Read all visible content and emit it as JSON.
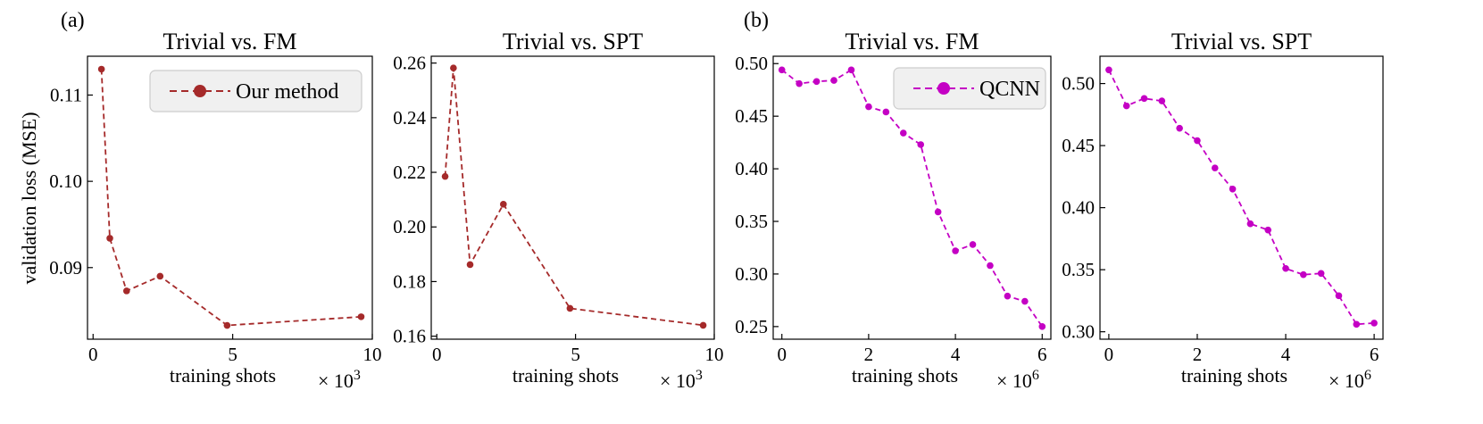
{
  "panel_labels": [
    "(a)",
    "(b)"
  ],
  "ylabel": "validation loss (MSE)",
  "chart_data": [
    {
      "type": "line",
      "title": "Trivial vs. FM",
      "xlabel": "training shots",
      "x_multiplier": "3",
      "color": "#a52a2a",
      "xlim": [
        -0.2,
        10.0
      ],
      "ylim": [
        0.0817,
        0.1145
      ],
      "xticks": [
        0,
        5,
        10
      ],
      "xtick_labels": [
        "0",
        "5",
        "10"
      ],
      "yticks": [
        0.09,
        0.1,
        0.11
      ],
      "ytick_labels": [
        "0.09",
        "0.10",
        "0.11"
      ],
      "legend": "Our method",
      "series": [
        {
          "name": "Our method",
          "x": [
            0.3,
            0.6,
            1.2,
            2.4,
            4.8,
            9.6
          ],
          "y": [
            0.113,
            0.0934,
            0.0873,
            0.089,
            0.0833,
            0.0843
          ]
        }
      ]
    },
    {
      "type": "line",
      "title": "Trivial vs. SPT",
      "xlabel": "training shots",
      "x_multiplier": "3",
      "color": "#a52a2a",
      "xlim": [
        -0.2,
        10.0
      ],
      "ylim": [
        0.1589,
        0.2625
      ],
      "xticks": [
        0,
        5,
        10
      ],
      "xtick_labels": [
        "0",
        "5",
        "10"
      ],
      "yticks": [
        0.16,
        0.18,
        0.2,
        0.22,
        0.24,
        0.26
      ],
      "ytick_labels": [
        "0.16",
        "0.18",
        "0.20",
        "0.22",
        "0.24",
        "0.26"
      ],
      "series": [
        {
          "name": "Our method",
          "x": [
            0.3,
            0.6,
            1.2,
            2.4,
            4.8,
            9.6
          ],
          "y": [
            0.2185,
            0.2582,
            0.1862,
            0.2083,
            0.1702,
            0.164
          ]
        }
      ]
    },
    {
      "type": "line",
      "title": "Trivial vs. FM",
      "xlabel": "training shots",
      "x_multiplier": "6",
      "color": "#c400c4",
      "xlim": [
        -0.2,
        6.2
      ],
      "ylim": [
        0.238,
        0.507
      ],
      "xticks": [
        0,
        2,
        4,
        6
      ],
      "xtick_labels": [
        "0",
        "2",
        "4",
        "6"
      ],
      "yticks": [
        0.25,
        0.3,
        0.35,
        0.4,
        0.45,
        0.5
      ],
      "ytick_labels": [
        "0.25",
        "0.30",
        "0.35",
        "0.40",
        "0.45",
        "0.50"
      ],
      "legend": "QCNN",
      "series": [
        {
          "name": "QCNN",
          "x": [
            0,
            0.4,
            0.8,
            1.2,
            1.6,
            2.0,
            2.4,
            2.8,
            3.2,
            3.6,
            4.0,
            4.4,
            4.8,
            5.2,
            5.6,
            6.0
          ],
          "y": [
            0.494,
            0.481,
            0.483,
            0.484,
            0.494,
            0.459,
            0.454,
            0.434,
            0.423,
            0.359,
            0.322,
            0.328,
            0.308,
            0.279,
            0.274,
            0.25
          ]
        }
      ]
    },
    {
      "type": "line",
      "title": "Trivial vs. SPT",
      "xlabel": "training shots",
      "x_multiplier": "6",
      "color": "#c400c4",
      "xlim": [
        -0.2,
        6.2
      ],
      "ylim": [
        0.294,
        0.522
      ],
      "xticks": [
        0,
        2,
        4,
        6
      ],
      "xtick_labels": [
        "0",
        "2",
        "4",
        "6"
      ],
      "yticks": [
        0.3,
        0.35,
        0.4,
        0.45,
        0.5
      ],
      "ytick_labels": [
        "0.30",
        "0.35",
        "0.40",
        "0.45",
        "0.50"
      ],
      "series": [
        {
          "name": "QCNN",
          "x": [
            0,
            0.4,
            0.8,
            1.2,
            1.6,
            2.0,
            2.4,
            2.8,
            3.2,
            3.6,
            4.0,
            4.4,
            4.8,
            5.2,
            5.6,
            6.0
          ],
          "y": [
            0.511,
            0.482,
            0.488,
            0.486,
            0.464,
            0.454,
            0.432,
            0.415,
            0.387,
            0.382,
            0.351,
            0.346,
            0.347,
            0.329,
            0.306,
            0.307
          ]
        }
      ]
    }
  ]
}
